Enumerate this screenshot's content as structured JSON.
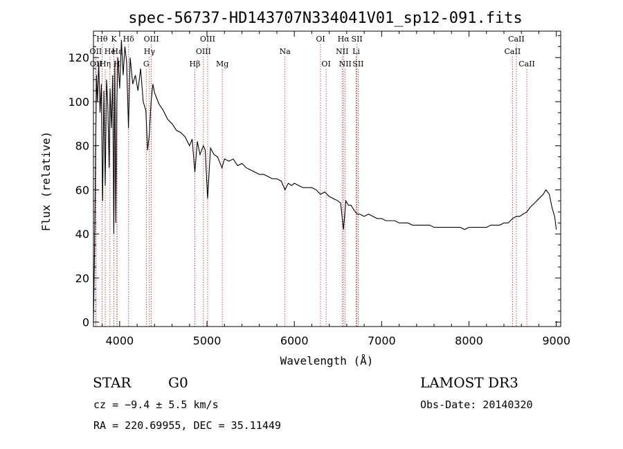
{
  "chart_data": {
    "type": "line",
    "title": "spec-56737-HD143707N334041V01_sp12-091.fits",
    "xlabel": "Wavelength (Å)",
    "ylabel": "Flux (relative)",
    "xlim": [
      3700,
      9050
    ],
    "ylim": [
      -2,
      132
    ],
    "x_ticks": [
      4000,
      5000,
      6000,
      7000,
      8000,
      9000
    ],
    "y_ticks": [
      0,
      20,
      40,
      60,
      80,
      100,
      120
    ],
    "grid": false,
    "series": [
      {
        "name": "flux",
        "x": [
          3700,
          3712,
          3725,
          3735,
          3745,
          3760,
          3775,
          3790,
          3805,
          3820,
          3835,
          3850,
          3865,
          3880,
          3890,
          3905,
          3920,
          3933,
          3945,
          3955,
          3968,
          3980,
          4000,
          4020,
          4040,
          4060,
          4080,
          4101,
          4120,
          4150,
          4180,
          4210,
          4240,
          4270,
          4300,
          4320,
          4340,
          4360,
          4380,
          4400,
          4450,
          4500,
          4550,
          4600,
          4650,
          4700,
          4750,
          4800,
          4830,
          4861,
          4890,
          4920,
          4959,
          4980,
          5007,
          5040,
          5080,
          5120,
          5172,
          5200,
          5250,
          5300,
          5350,
          5400,
          5450,
          5500,
          5550,
          5600,
          5650,
          5700,
          5750,
          5800,
          5850,
          5893,
          5930,
          5970,
          6000,
          6050,
          6100,
          6150,
          6200,
          6250,
          6300,
          6350,
          6400,
          6450,
          6500,
          6530,
          6563,
          6590,
          6620,
          6650,
          6680,
          6700,
          6720,
          6750,
          6800,
          6850,
          6900,
          6950,
          7000,
          7050,
          7100,
          7150,
          7200,
          7250,
          7300,
          7350,
          7400,
          7450,
          7500,
          7550,
          7600,
          7650,
          7700,
          7750,
          7800,
          7850,
          7900,
          7950,
          8000,
          8050,
          8100,
          8150,
          8200,
          8250,
          8300,
          8350,
          8400,
          8450,
          8498,
          8542,
          8580,
          8620,
          8662,
          8700,
          8750,
          8800,
          8850,
          8880,
          8920,
          8950,
          8980,
          9000
        ],
        "y": [
          0,
          30,
          80,
          112,
          100,
          118,
          95,
          108,
          55,
          105,
          62,
          110,
          98,
          70,
          106,
          88,
          112,
          40,
          118,
          45,
          100,
          120,
          106,
          128,
          112,
          125,
          118,
          88,
          120,
          108,
          112,
          105,
          115,
          100,
          96,
          78,
          85,
          100,
          108,
          104,
          99,
          96,
          92,
          90,
          87,
          86,
          84,
          80,
          83,
          68,
          82,
          76,
          80,
          78,
          56,
          79,
          76,
          75,
          70,
          74,
          73,
          74,
          71,
          72,
          70,
          69,
          68,
          67,
          67,
          66,
          65,
          65,
          64,
          60,
          63,
          62,
          63,
          62,
          61,
          61,
          61,
          60,
          58,
          59,
          57,
          56,
          55,
          54,
          42,
          55,
          53,
          53,
          51,
          50,
          49,
          49,
          48,
          49,
          48,
          47,
          47,
          46,
          46,
          46,
          45,
          45,
          45,
          44,
          44,
          44,
          44,
          44,
          43,
          43,
          43,
          43,
          43,
          43,
          43,
          42,
          43,
          43,
          43,
          43,
          43,
          44,
          44,
          44,
          45,
          45,
          47,
          48,
          48,
          49,
          50,
          52,
          54,
          56,
          58,
          60,
          58,
          52,
          48,
          42
        ]
      }
    ],
    "spectral_lines": [
      {
        "label": "Hθ",
        "x": 3798,
        "row": 0
      },
      {
        "label": "OII",
        "x": 3727,
        "row": 1
      },
      {
        "label": "OII",
        "x": 3729,
        "row": 2
      },
      {
        "label": "He",
        "x": 3889,
        "row": 1
      },
      {
        "label": "Hη",
        "x": 3835,
        "row": 2
      },
      {
        "label": "K",
        "x": 3934,
        "row": 0
      },
      {
        "label": "H",
        "x": 3969,
        "row": 2
      },
      {
        "label": "Hδ",
        "x": 4102,
        "row": 0
      },
      {
        "label": "Hε",
        "x": 3970,
        "row": 1
      },
      {
        "label": "OIII",
        "x": 4363,
        "row": 0
      },
      {
        "label": "Hγ",
        "x": 4341,
        "row": 1
      },
      {
        "label": "G",
        "x": 4305,
        "row": 2
      },
      {
        "label": "OIII",
        "x": 5007,
        "row": 0
      },
      {
        "label": "OIII",
        "x": 4959,
        "row": 1
      },
      {
        "label": "Hβ",
        "x": 4861,
        "row": 2
      },
      {
        "label": "Mg",
        "x": 5175,
        "row": 2
      },
      {
        "label": "Na",
        "x": 5893,
        "row": 1
      },
      {
        "label": "OI",
        "x": 6300,
        "row": 0
      },
      {
        "label": "OI",
        "x": 6364,
        "row": 2
      },
      {
        "label": "Hα",
        "x": 6563,
        "row": 0
      },
      {
        "label": "NII",
        "x": 6548,
        "row": 1
      },
      {
        "label": "NII",
        "x": 6583,
        "row": 2
      },
      {
        "label": "SII",
        "x": 6717,
        "row": 0
      },
      {
        "label": "Li",
        "x": 6708,
        "row": 1
      },
      {
        "label": "SII",
        "x": 6731,
        "row": 2
      },
      {
        "label": "CaII",
        "x": 8542,
        "row": 0
      },
      {
        "label": "CaII",
        "x": 8498,
        "row": 1
      },
      {
        "label": "CaII",
        "x": 8662,
        "row": 2
      }
    ]
  },
  "info": {
    "object_class": "STAR",
    "subclass": "G0",
    "survey": "LAMOST DR3",
    "redshift_line": "cz = −9.4 ± 5.5 km/s",
    "obs_date": "Obs-Date: 20140320",
    "coords": "RA = 220.69955, DEC =  35.11449"
  },
  "colors": {
    "spectrum": "#000000",
    "line_markers": "#b22222",
    "axes": "#000000"
  }
}
